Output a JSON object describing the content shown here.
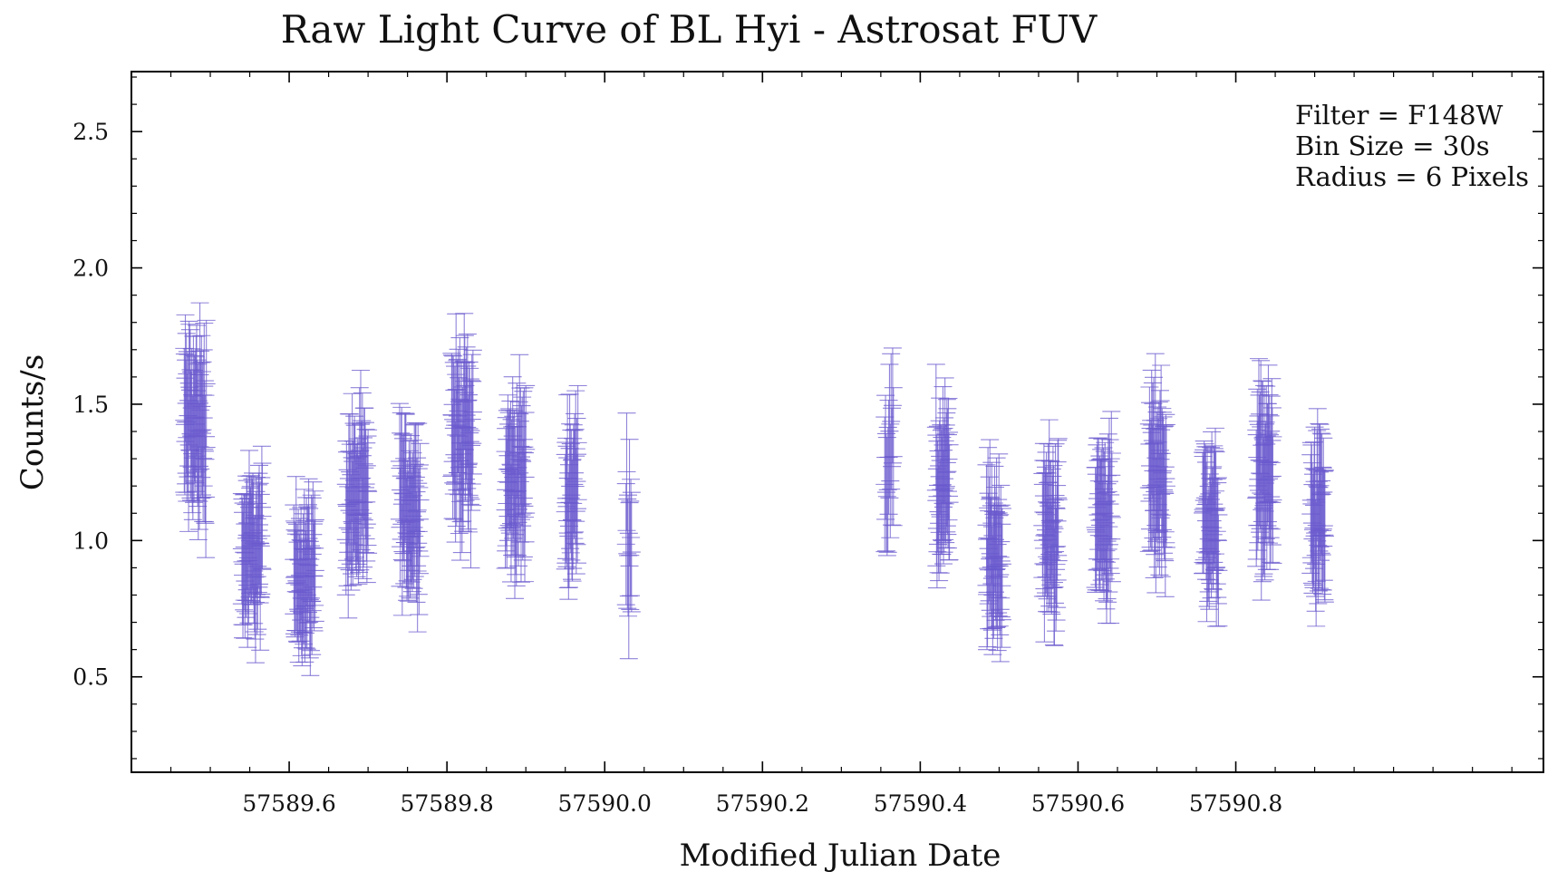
{
  "chart_data": {
    "type": "scatter",
    "title": "Raw Light Curve of BL Hyi - Astrosat FUV",
    "xlabel": "Modified Julian Date",
    "ylabel": "Counts/s",
    "xlim": [
      57589.4,
      57591.19
    ],
    "ylim": [
      0.15,
      2.72
    ],
    "xticks": [
      57589.6,
      57589.8,
      57590.0,
      57590.2,
      57590.4,
      57590.6,
      57590.8
    ],
    "xtick_labels": [
      "57589.6",
      "57589.8",
      "57590.0",
      "57590.2",
      "57590.4",
      "57590.6",
      "57590.8"
    ],
    "yticks": [
      0.5,
      1.0,
      1.5,
      2.0,
      2.5
    ],
    "ytick_labels": [
      "0.5",
      "1.0",
      "1.5",
      "2.0",
      "2.5"
    ],
    "grid": false,
    "color": "#6a5acd",
    "annotation": [
      "Filter = F148W",
      "Bin Size = 30s",
      "Radius = 6 Pixels"
    ],
    "annotation_position": "top-right",
    "series": [
      {
        "marker": "errorbar",
        "segments": [
          {
            "x_start": 57589.467,
            "x_end": 57589.495,
            "y_mid": 1.42,
            "y_spread": 0.34,
            "err": 0.24,
            "n": 42
          },
          {
            "x_start": 57589.54,
            "x_end": 57589.566,
            "y_mid": 0.95,
            "y_spread": 0.26,
            "err": 0.21,
            "n": 40
          },
          {
            "x_start": 57589.606,
            "x_end": 57589.633,
            "y_mid": 0.88,
            "y_spread": 0.24,
            "err": 0.2,
            "n": 40
          },
          {
            "x_start": 57589.672,
            "x_end": 57589.7,
            "y_mid": 1.15,
            "y_spread": 0.3,
            "err": 0.22,
            "n": 40
          },
          {
            "x_start": 57589.74,
            "x_end": 57589.766,
            "y_mid": 1.12,
            "y_spread": 0.26,
            "err": 0.22,
            "n": 40
          },
          {
            "x_start": 57589.806,
            "x_end": 57589.833,
            "y_mid": 1.38,
            "y_spread": 0.3,
            "err": 0.23,
            "n": 40
          },
          {
            "x_start": 57589.874,
            "x_end": 57589.9,
            "y_mid": 1.22,
            "y_spread": 0.28,
            "err": 0.22,
            "n": 40
          },
          {
            "x_start": 57589.95,
            "x_end": 57589.966,
            "y_mid": 1.18,
            "y_spread": 0.28,
            "err": 0.22,
            "n": 24
          },
          {
            "x_start": 57590.027,
            "x_end": 57590.034,
            "y_mid": 1.05,
            "y_spread": 0.3,
            "err": 0.22,
            "n": 9
          },
          {
            "x_start": 57590.355,
            "x_end": 57590.366,
            "y_mid": 1.28,
            "y_spread": 0.32,
            "err": 0.23,
            "n": 12
          },
          {
            "x_start": 57590.42,
            "x_end": 57590.437,
            "y_mid": 1.18,
            "y_spread": 0.3,
            "err": 0.22,
            "n": 28
          },
          {
            "x_start": 57590.484,
            "x_end": 57590.504,
            "y_mid": 0.95,
            "y_spread": 0.3,
            "err": 0.21,
            "n": 34
          },
          {
            "x_start": 57590.555,
            "x_end": 57590.575,
            "y_mid": 1.02,
            "y_spread": 0.28,
            "err": 0.21,
            "n": 34
          },
          {
            "x_start": 57590.622,
            "x_end": 57590.643,
            "y_mid": 1.08,
            "y_spread": 0.26,
            "err": 0.22,
            "n": 32
          },
          {
            "x_start": 57590.69,
            "x_end": 57590.712,
            "y_mid": 1.24,
            "y_spread": 0.3,
            "err": 0.23,
            "n": 34
          },
          {
            "x_start": 57590.758,
            "x_end": 57590.778,
            "y_mid": 1.06,
            "y_spread": 0.28,
            "err": 0.21,
            "n": 32
          },
          {
            "x_start": 57590.826,
            "x_end": 57590.847,
            "y_mid": 1.24,
            "y_spread": 0.28,
            "err": 0.23,
            "n": 34
          },
          {
            "x_start": 57590.895,
            "x_end": 57590.913,
            "y_mid": 1.07,
            "y_spread": 0.26,
            "err": 0.22,
            "n": 30
          }
        ]
      }
    ]
  }
}
